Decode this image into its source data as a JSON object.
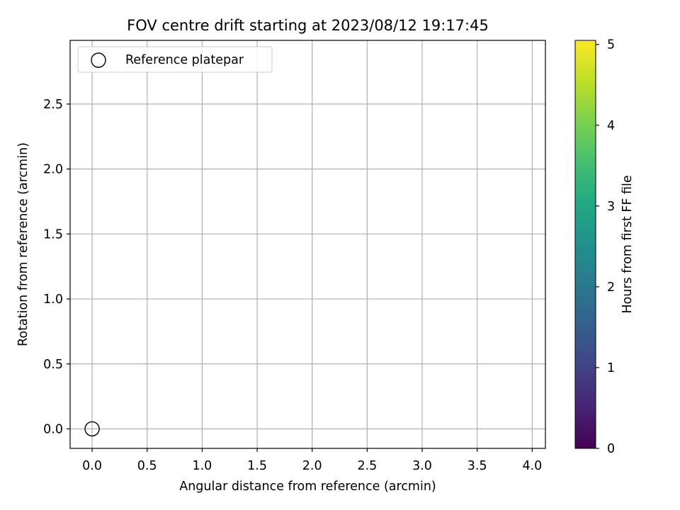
{
  "chart_data": {
    "type": "scatter",
    "title": "FOV centre drift starting at 2023/08/12 19:17:45",
    "xlabel": "Angular distance from reference (arcmin)",
    "ylabel": "Rotation from reference (arcmin)",
    "xlim": [
      -0.2,
      4.12
    ],
    "ylim": [
      -0.15,
      2.99
    ],
    "xticks": [
      "0.0",
      "0.5",
      "1.0",
      "1.5",
      "2.0",
      "2.5",
      "3.0",
      "3.5",
      "4.0"
    ],
    "yticks": [
      "0.0",
      "0.5",
      "1.0",
      "1.5",
      "2.0",
      "2.5"
    ],
    "grid": true,
    "legend": {
      "position": "top-left",
      "entries": [
        "Reference platepar"
      ]
    },
    "colorbar": {
      "label": "Hours from first FF file",
      "range": [
        0,
        5.05
      ],
      "ticks": [
        "0",
        "1",
        "2",
        "3",
        "4",
        "5"
      ],
      "colormap": "viridis"
    },
    "reference_point": {
      "x": 0.0,
      "y": 0.0,
      "name": "Reference platepar"
    },
    "points": []
  },
  "colors": {
    "grid": "#b0b0b0",
    "axes": "#000000",
    "reference_marker": "#000000"
  }
}
